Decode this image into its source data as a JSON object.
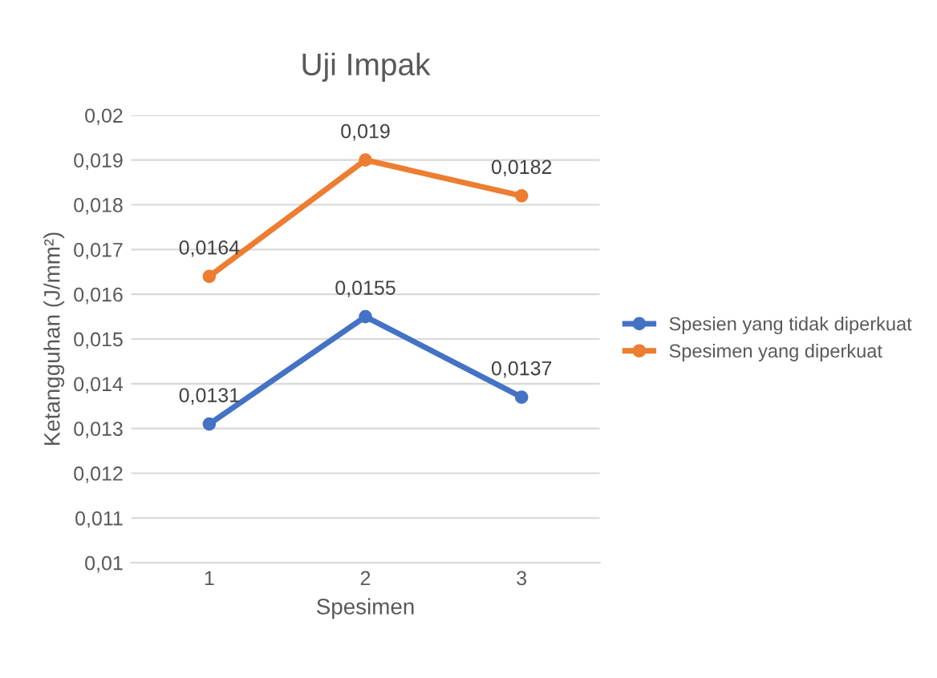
{
  "chart_data": {
    "type": "line",
    "title": "Uji Impak",
    "xlabel": "Spesimen",
    "ylabel": "Ketangguhan (J/mm²)",
    "categories": [
      "1",
      "2",
      "3"
    ],
    "series": [
      {
        "name": "Spesien yang tidak diperkuat",
        "color": "#4472c4",
        "values": [
          0.0131,
          0.0155,
          0.0137
        ],
        "value_labels": [
          "0,0131",
          "0,0155",
          "0,0137"
        ]
      },
      {
        "name": "Spesimen yang diperkuat",
        "color": "#ed7d31",
        "values": [
          0.0164,
          0.019,
          0.0182
        ],
        "value_labels": [
          "0,0164",
          "0,019",
          "0,0182"
        ]
      }
    ],
    "ylim": [
      0.01,
      0.02
    ],
    "yticks": [
      {
        "value": 0.01,
        "label": "0,01"
      },
      {
        "value": 0.011,
        "label": "0,011"
      },
      {
        "value": 0.012,
        "label": "0,012"
      },
      {
        "value": 0.013,
        "label": "0,013"
      },
      {
        "value": 0.014,
        "label": "0,014"
      },
      {
        "value": 0.015,
        "label": "0,015"
      },
      {
        "value": 0.016,
        "label": "0,016"
      },
      {
        "value": 0.017,
        "label": "0,017"
      },
      {
        "value": 0.018,
        "label": "0,018"
      },
      {
        "value": 0.019,
        "label": "0,019"
      },
      {
        "value": 0.02,
        "label": "0,02"
      }
    ],
    "grid": "y",
    "legend": "right",
    "marker": "circle",
    "line_style": "solid"
  }
}
